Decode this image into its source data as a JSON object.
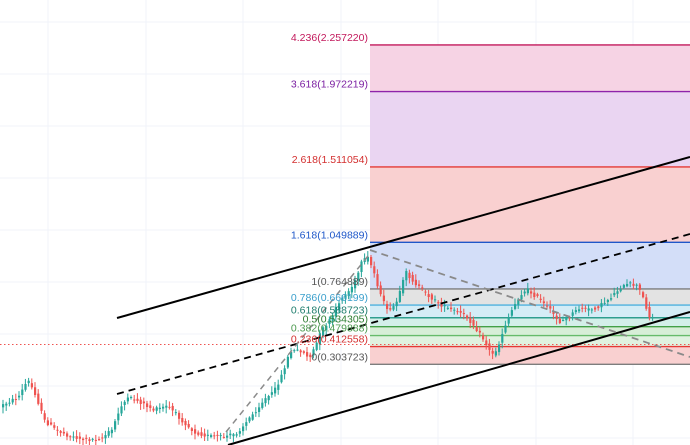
{
  "chart_data": {
    "type": "line",
    "title": "",
    "xlabel": "",
    "ylabel": "",
    "grid": true,
    "price_range": [
      0.05,
      2.4
    ],
    "fibonacci_levels": [
      {
        "ratio": "4.236",
        "value": "2.257220",
        "label": "4.236(2.257220)",
        "line_color": "#c2185b",
        "fill_color": "#f6d3e4",
        "text_color": "#c2185b"
      },
      {
        "ratio": "3.618",
        "value": "1.972219",
        "label": "3.618(1.972219)",
        "line_color": "#8e24aa",
        "fill_color": "#ead5f2",
        "text_color": "#7b1fa2"
      },
      {
        "ratio": "2.618",
        "value": "1.511054",
        "label": "2.618(1.511054)",
        "line_color": "#e53935",
        "fill_color": "#f9d0d0",
        "text_color": "#d32f2f"
      },
      {
        "ratio": "1.618",
        "value": "1.049889",
        "label": "1.618(1.049889)",
        "line_color": "#1e57c9",
        "fill_color": "#d3def8",
        "text_color": "#1e57c9"
      },
      {
        "ratio": "1",
        "value": "0.764889",
        "label": "1(0.764889)",
        "line_color": "#7d7d7d",
        "fill_color": "#e3e3e3",
        "text_color": "#555555"
      },
      {
        "ratio": "0.786",
        "value": "0.666199",
        "label": "0.786(0.666199)",
        "line_color": "#4fb2de",
        "fill_color": "#d4ecf6",
        "text_color": "#3a9fcc"
      },
      {
        "ratio": "0.618",
        "value": "0.588723",
        "label": "0.618(0.588723)",
        "line_color": "#2e9e8f",
        "fill_color": "#d3efe9",
        "text_color": "#1e7d6d"
      },
      {
        "ratio": "0.5",
        "value": "0.534305",
        "label": "0.5(0.534305)",
        "line_color": "#43a047",
        "fill_color": "#d7eed7",
        "text_color": "#2e7d32"
      },
      {
        "ratio": "0.382",
        "value": "0.479888",
        "label": "0.382(0.479888)",
        "line_color": "#66bb6a",
        "fill_color": "#e0f2e0",
        "text_color": "#4c9a50"
      },
      {
        "ratio": "0.236",
        "value": "0.412558",
        "label": "0.236(0.412558)",
        "line_color": "#e53935",
        "fill_color": "#f9d0d0",
        "text_color": "#d32f2f"
      },
      {
        "ratio": "0",
        "value": "0.303723",
        "label": "0(0.303723)",
        "line_color": "#7d7d7d",
        "fill_color": "",
        "text_color": "#555555"
      }
    ],
    "candle_up_color": "#26a69a",
    "candle_down_color": "#ef5350",
    "price_line_color": "#ef5350",
    "channel_color": "#000000",
    "trend_dashed_color": "#8a8a8a"
  }
}
